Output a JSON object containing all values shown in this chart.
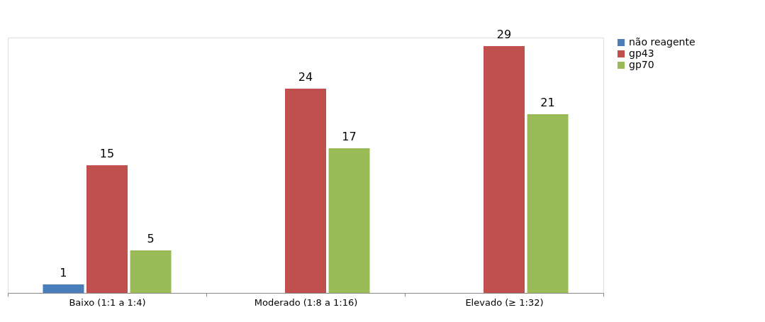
{
  "chart_data": {
    "type": "bar",
    "categories": [
      "Baixo (1:1 a 1:4)",
      "Moderado (1:8 a 1:16)",
      "Elevado (≥ 1:32)"
    ],
    "series": [
      {
        "name": "não reagente",
        "color": "#4a7ebb",
        "values": [
          1,
          null,
          null
        ]
      },
      {
        "name": "gp43",
        "color": "#c0504d",
        "values": [
          15,
          24,
          29
        ]
      },
      {
        "name": "gp70",
        "color": "#9bbb59",
        "values": [
          5,
          17,
          21
        ]
      }
    ],
    "data_labels": true,
    "legend": "right",
    "grid": false,
    "tick_labels": "x"
  }
}
